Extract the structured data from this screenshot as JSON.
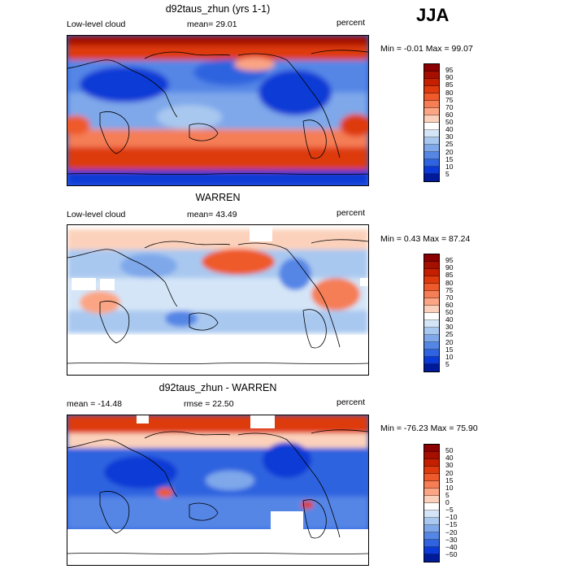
{
  "season": "JJA",
  "panels": [
    {
      "title": "d92taus_zhun (yrs 1-1)",
      "left_label": "Low-level cloud",
      "center_label": "mean=  29.01",
      "right_label": "percent",
      "minmax": "Min =   -0.01 Max =   99.07",
      "colorbar_labels": [
        "95",
        "90",
        "85",
        "80",
        "75",
        "70",
        "60",
        "50",
        "40",
        "30",
        "25",
        "20",
        "15",
        "10",
        "5"
      ],
      "colors": [
        "#8b0000",
        "#a50f00",
        "#c42000",
        "#de3a0e",
        "#ee5a2c",
        "#f57e56",
        "#fba584",
        "#fcd1bb",
        "#ffffff",
        "#d4e5f7",
        "#a9c8f0",
        "#7ea8ea",
        "#5586e6",
        "#2f63df",
        "#0c3ad6",
        "#001a9a"
      ]
    },
    {
      "title": "WARREN",
      "left_label": "Low-level cloud",
      "center_label": "mean=  43.49",
      "right_label": "percent",
      "minmax": "Min =    0.43 Max =   87.24",
      "colorbar_labels": [
        "95",
        "90",
        "85",
        "80",
        "75",
        "70",
        "60",
        "50",
        "40",
        "30",
        "25",
        "20",
        "15",
        "10",
        "5"
      ],
      "colors": [
        "#8b0000",
        "#a50f00",
        "#c42000",
        "#de3a0e",
        "#ee5a2c",
        "#f57e56",
        "#fba584",
        "#fcd1bb",
        "#ffffff",
        "#d4e5f7",
        "#a9c8f0",
        "#7ea8ea",
        "#5586e6",
        "#2f63df",
        "#0c3ad6",
        "#001a9a"
      ]
    },
    {
      "title": "d92taus_zhun - WARREN",
      "left_label": "mean = -14.48",
      "center_label": "rmse =  22.50",
      "right_label": "percent",
      "minmax": "Min =  -76.23 Max =   75.90",
      "colorbar_labels": [
        "50",
        "40",
        "30",
        "20",
        "15",
        "10",
        "5",
        "0",
        "−5",
        "−10",
        "−15",
        "−20",
        "−30",
        "−40",
        "−50"
      ],
      "colors": [
        "#8b0000",
        "#a50f00",
        "#c42000",
        "#de3a0e",
        "#ee5a2c",
        "#f57e56",
        "#fba584",
        "#fcd1bb",
        "#ffffff",
        "#d4e5f7",
        "#a9c8f0",
        "#7ea8ea",
        "#5586e6",
        "#2f63df",
        "#0c3ad6",
        "#001a9a"
      ]
    }
  ],
  "chart_data": [
    {
      "type": "heatmap",
      "title": "d92taus_zhun (yrs 1-1)",
      "subtitle": "Low-level cloud",
      "units": "percent",
      "mean": 29.01,
      "min": -0.01,
      "max": 99.07,
      "contour_levels": [
        5,
        10,
        15,
        20,
        25,
        30,
        40,
        50,
        60,
        70,
        75,
        80,
        85,
        90,
        95
      ],
      "x_range": [
        0,
        360
      ],
      "y_range": [
        -90,
        90
      ]
    },
    {
      "type": "heatmap",
      "title": "WARREN",
      "subtitle": "Low-level cloud",
      "units": "percent",
      "mean": 43.49,
      "min": 0.43,
      "max": 87.24,
      "contour_levels": [
        5,
        10,
        15,
        20,
        25,
        30,
        40,
        50,
        60,
        70,
        75,
        80,
        85,
        90,
        95
      ],
      "x_range": [
        0,
        360
      ],
      "y_range": [
        -90,
        90
      ]
    },
    {
      "type": "heatmap",
      "title": "d92taus_zhun - WARREN",
      "units": "percent",
      "mean": -14.48,
      "rmse": 22.5,
      "min": -76.23,
      "max": 75.9,
      "contour_levels": [
        -50,
        -40,
        -30,
        -20,
        -15,
        -10,
        -5,
        0,
        5,
        10,
        15,
        20,
        30,
        40,
        50
      ],
      "x_range": [
        0,
        360
      ],
      "y_range": [
        -90,
        90
      ]
    }
  ]
}
